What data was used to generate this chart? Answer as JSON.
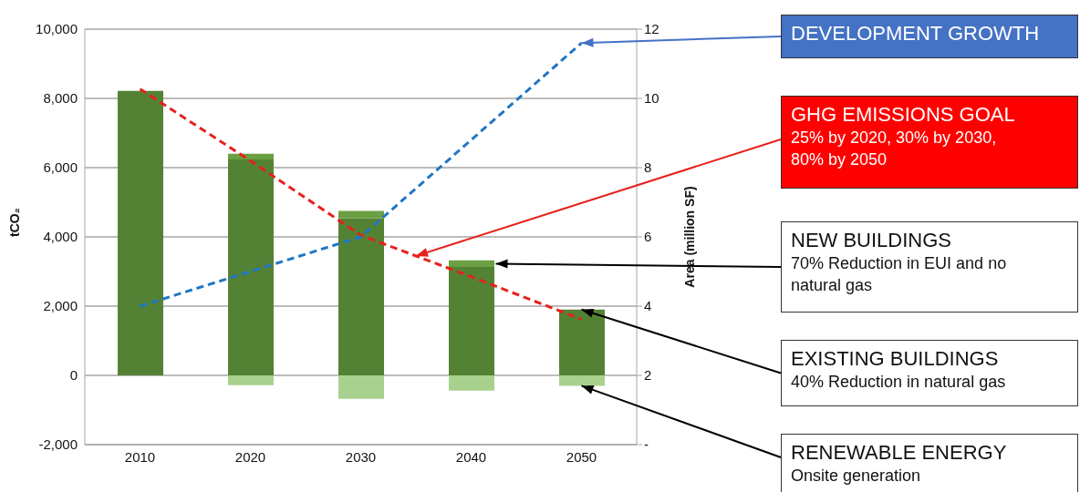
{
  "chart_data": {
    "type": "bar",
    "stacked": true,
    "categories": [
      "2010",
      "2020",
      "2030",
      "2040",
      "2050"
    ],
    "series": [
      {
        "color": "#548235",
        "values": [
          8220,
          6240,
          4540,
          3130,
          1900
        ]
      },
      {
        "color": "#6a9f42",
        "values": [
          null,
          160,
          210,
          190,
          null
        ]
      },
      {
        "color": "#a9d18e",
        "values": [
          null,
          -280,
          -680,
          -440,
          -300
        ]
      },
      {
        "type": "line",
        "color": "#e8201c",
        "values": [
          8270,
          6200,
          4050,
          2850,
          1620
        ]
      },
      {
        "type": "line",
        "color": "#1f77c4",
        "axis": "y2",
        "values": [
          4.0,
          5.0,
          6.0,
          8.8,
          11.6
        ]
      }
    ],
    "ylim": [
      -2000,
      10000
    ],
    "yticks": [
      {
        "value": -2000,
        "label": "-2,000"
      },
      0,
      {
        "value": 2000,
        "label": "2,000"
      },
      {
        "value": 4000,
        "label": "4,000"
      },
      {
        "value": 6000,
        "label": "6,000"
      },
      {
        "value": 8000,
        "label": "8,000"
      },
      {
        "value": 10000,
        "label": "10,000"
      }
    ],
    "y2lim": [
      0,
      12
    ],
    "y2ticks": [
      {
        "value": 0,
        "label": "-"
      },
      2,
      4,
      6,
      8,
      10,
      12
    ],
    "ylabel": "tCO₂",
    "y2label": "Area (million SF)",
    "grid": "y",
    "line_style": "dashed",
    "marker": "none",
    "annotations": [
      {
        "text": "DEVELOPMENT GROWTH",
        "x": "2050",
        "y": 9600
      },
      "GHG EMISSIONS GOAL\n25% by 2020, 30% by 2030, 80% by 2050",
      "NEW BUILDINGS\n70% Reduction in EUI and no natural gas",
      {
        "text": "EXISTING BUILDINGS\n40% Reduction in natural gas",
        "x": "2050",
        "y": 1900
      },
      {
        "text": "RENEWABLE ENERGY\nOnsite generation",
        "x": "2050",
        "y": -300
      }
    ]
  }
}
